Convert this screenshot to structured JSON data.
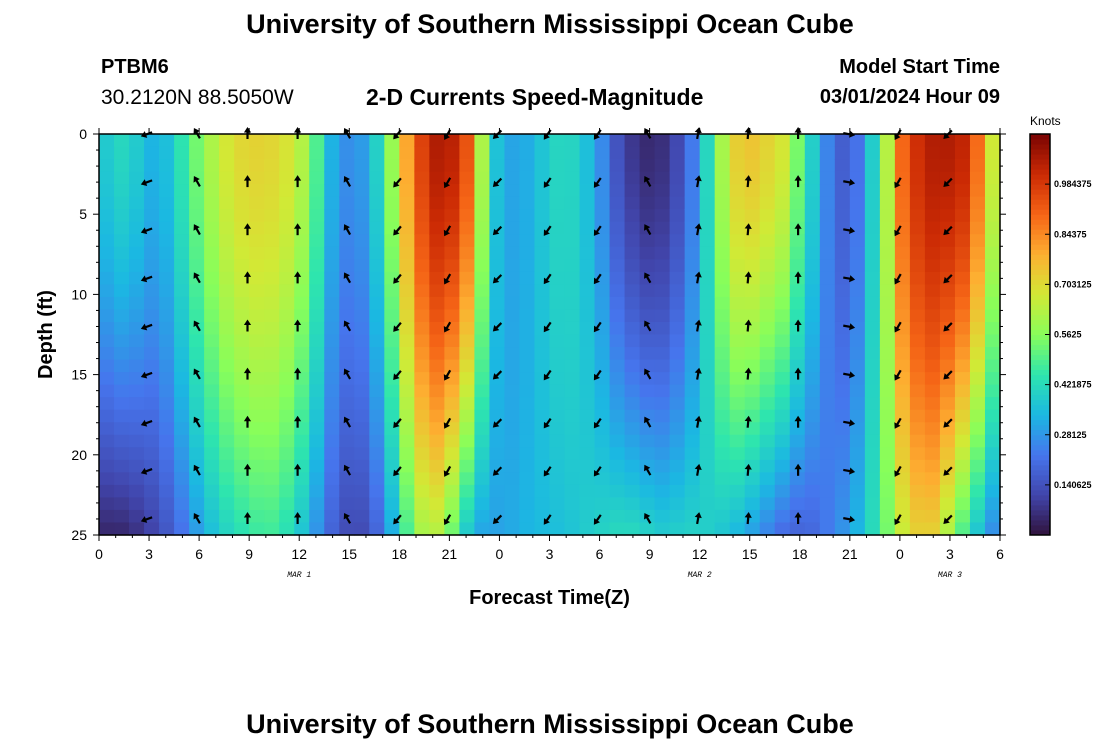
{
  "header": {
    "title": "University of Southern Mississippi Ocean Cube",
    "station_id": "PTBM6",
    "station_coords": "30.2120N  88.5050W",
    "plot_title": "2-D Currents Speed-Magnitude",
    "model_start_label": "Model Start Time",
    "model_start_time": "03/01/2024 Hour 09"
  },
  "footer": {
    "title": "University of Southern Mississippi Ocean Cube"
  },
  "chart_data": {
    "type": "heatmap",
    "title": "2-D Currents Speed-Magnitude",
    "xlabel": "Forecast Time(Z)",
    "ylabel": "Depth (ft)",
    "x_ticks": [
      "0",
      "3",
      "6",
      "9",
      "12",
      "15",
      "18",
      "21",
      "0",
      "3",
      "6",
      "9",
      "12",
      "15",
      "18",
      "21",
      "0",
      "3",
      "6"
    ],
    "x_range_hours": [
      0,
      54
    ],
    "date_labels": [
      {
        "text": "MAR 1",
        "hour": 12
      },
      {
        "text": "MAR 2",
        "hour": 36
      },
      {
        "text": "MAR 3",
        "hour": 51
      }
    ],
    "y_ticks": [
      "0",
      "5",
      "10",
      "15",
      "20",
      "25"
    ],
    "ylim": [
      0,
      25
    ],
    "y_inverted": true,
    "colorbar": {
      "title": "Knots",
      "range": [
        0,
        1.125
      ],
      "ticks": [
        "0.140625",
        "0.28125",
        "0.421875",
        "0.5625",
        "0.703125",
        "0.84375",
        "0.984375"
      ],
      "tick_values": [
        0.140625,
        0.28125,
        0.421875,
        0.5625,
        0.703125,
        0.84375,
        0.984375
      ]
    },
    "speed_profile": {
      "time_hours": [
        0,
        1,
        2,
        3,
        4,
        5,
        6,
        7,
        8,
        9,
        10,
        11,
        12,
        13,
        14,
        15,
        16,
        17,
        18,
        19,
        20,
        21,
        22,
        23,
        24,
        25,
        26,
        27,
        28,
        29,
        30,
        31,
        32,
        33,
        34,
        35,
        36,
        37,
        38,
        39,
        40,
        41,
        42,
        43,
        44,
        45,
        46,
        47,
        48,
        49,
        50,
        51,
        52,
        53,
        54
      ],
      "surface_kn": [
        0.35,
        0.42,
        0.4,
        0.33,
        0.35,
        0.45,
        0.55,
        0.64,
        0.7,
        0.72,
        0.72,
        0.7,
        0.65,
        0.5,
        0.32,
        0.26,
        0.3,
        0.45,
        0.7,
        0.92,
        1.05,
        1.05,
        0.95,
        0.6,
        0.32,
        0.3,
        0.33,
        0.4,
        0.42,
        0.38,
        0.28,
        0.15,
        0.08,
        0.05,
        0.07,
        0.15,
        0.3,
        0.55,
        0.72,
        0.75,
        0.72,
        0.68,
        0.52,
        0.35,
        0.2,
        0.15,
        0.3,
        0.55,
        0.88,
        1.0,
        1.05,
        1.05,
        1.02,
        0.82,
        0.55
      ],
      "bottom_kn": [
        0.05,
        0.04,
        0.06,
        0.1,
        0.15,
        0.22,
        0.3,
        0.37,
        0.42,
        0.45,
        0.48,
        0.45,
        0.38,
        0.28,
        0.18,
        0.12,
        0.13,
        0.22,
        0.4,
        0.58,
        0.65,
        0.55,
        0.38,
        0.3,
        0.3,
        0.32,
        0.34,
        0.35,
        0.36,
        0.38,
        0.4,
        0.42,
        0.42,
        0.4,
        0.38,
        0.4,
        0.4,
        0.38,
        0.35,
        0.3,
        0.25,
        0.2,
        0.18,
        0.2,
        0.25,
        0.3,
        0.38,
        0.5,
        0.65,
        0.72,
        0.72,
        0.6,
        0.45,
        0.32,
        0.22
      ]
    },
    "vectors": {
      "depths_ft": [
        0,
        3,
        6,
        9,
        12,
        15,
        18,
        21,
        24
      ],
      "time_hours": [
        2.9,
        5.9,
        8.9,
        11.9,
        14.9,
        17.9,
        20.9,
        23.9,
        26.9,
        29.9,
        32.9,
        35.9,
        38.9,
        41.9,
        44.9,
        47.9,
        50.9
      ],
      "direction_deg_by_time": [
        250,
        330,
        0,
        0,
        330,
        220,
        210,
        225,
        215,
        215,
        330,
        10,
        5,
        0,
        100,
        210,
        225
      ]
    }
  }
}
